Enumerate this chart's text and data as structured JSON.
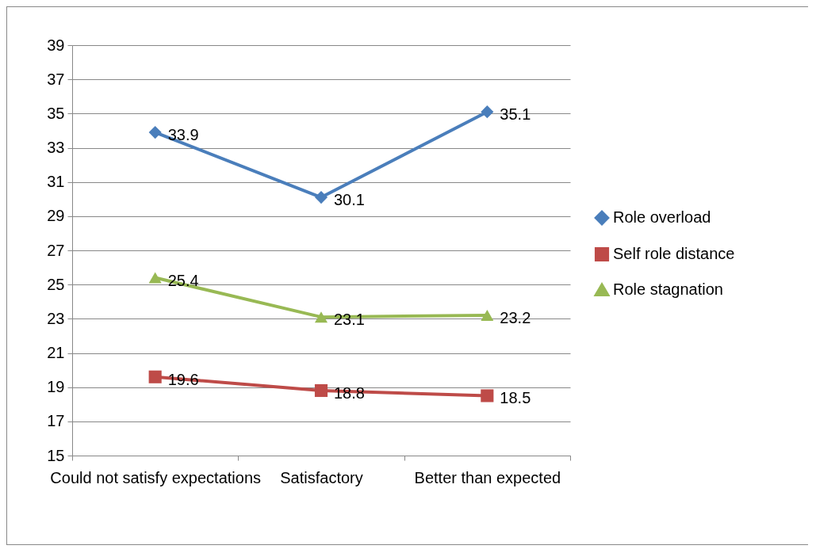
{
  "chart_data": {
    "type": "line",
    "categories": [
      "Could not satisfy\nexpectations",
      "Satisfactory",
      "Better than\nexpected"
    ],
    "series": [
      {
        "name": "Role overload",
        "color": "#4a7ebb",
        "marker": "diamond",
        "values": [
          33.9,
          30.1,
          35.1
        ]
      },
      {
        "name": "Self role distance",
        "color": "#be4b48",
        "marker": "square",
        "values": [
          19.6,
          18.8,
          18.5
        ]
      },
      {
        "name": "Role stagnation",
        "color": "#98b954",
        "marker": "triangle",
        "values": [
          25.4,
          23.1,
          23.2
        ]
      }
    ],
    "ylim": [
      15,
      39
    ],
    "yticks": [
      15,
      17,
      19,
      21,
      23,
      25,
      27,
      29,
      31,
      33,
      35,
      37,
      39
    ],
    "grid": "y",
    "legend": "right",
    "data_labels": true
  }
}
